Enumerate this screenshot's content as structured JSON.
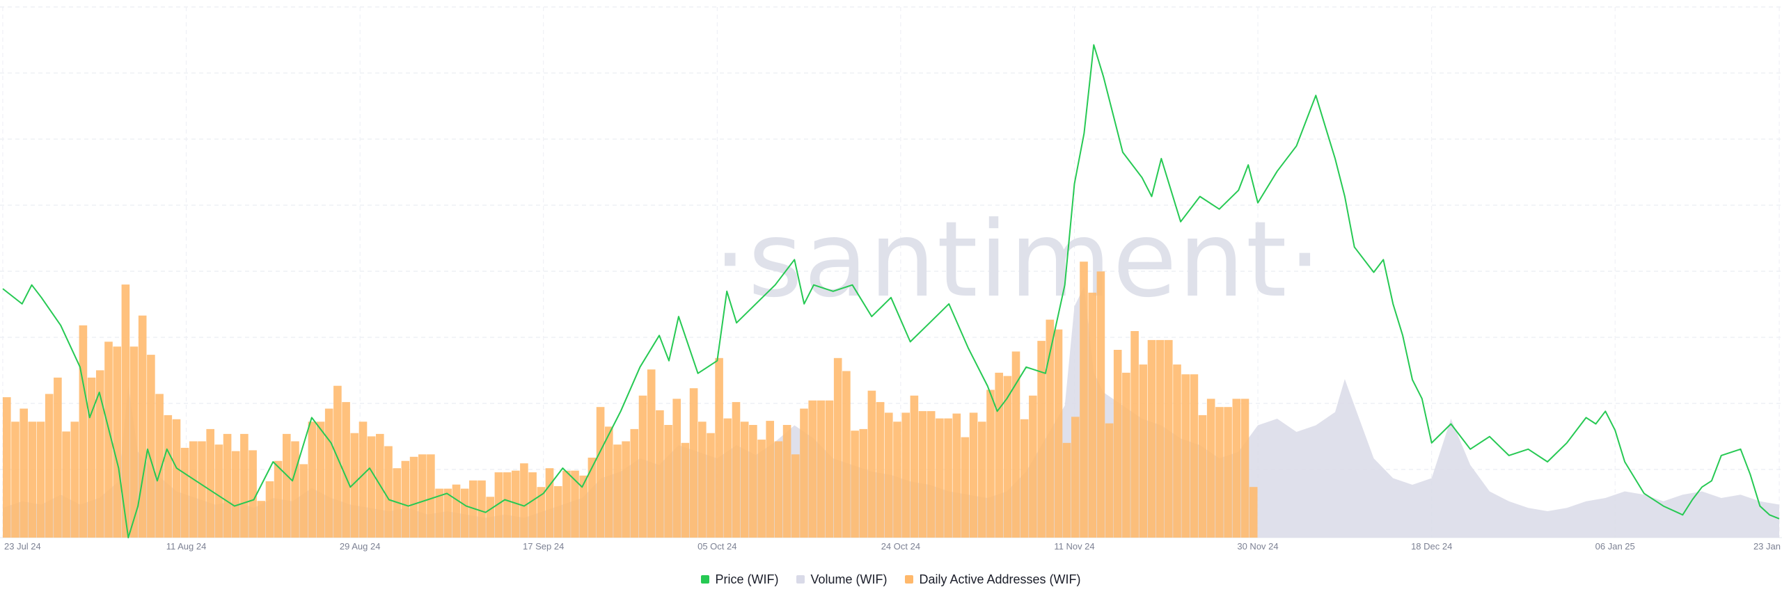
{
  "watermark": "·santiment·",
  "legend": [
    {
      "label": "Price (WIF)",
      "color": "#26c953"
    },
    {
      "label": "Volume (WIF)",
      "color": "#d9dae8"
    },
    {
      "label": "Daily Active Addresses (WIF)",
      "color": "#ffb86b"
    }
  ],
  "chart_data": {
    "type": "line+bar",
    "title": "",
    "x_tick_labels": [
      "23 Jul 24",
      "11 Aug 24",
      "29 Aug 24",
      "17 Sep 24",
      "05 Oct 24",
      "24 Oct 24",
      "11 Nov 24",
      "30 Nov 24",
      "18 Dec 24",
      "06 Jan 25",
      "23 Jan"
    ],
    "x_tick_days": [
      0,
      19,
      37,
      56,
      74,
      93,
      111,
      130,
      148,
      167,
      184
    ],
    "grid": true,
    "series": [
      {
        "name": "Price (WIF)",
        "kind": "line",
        "color": "#26c953",
        "ylim": [
          0.6,
          4.8
        ],
        "points": [
          [
            0,
            2.57
          ],
          [
            2,
            2.45
          ],
          [
            3,
            2.6
          ],
          [
            4,
            2.5
          ],
          [
            6,
            2.28
          ],
          [
            8,
            1.95
          ],
          [
            9,
            1.55
          ],
          [
            10,
            1.75
          ],
          [
            12,
            1.15
          ],
          [
            13,
            0.6
          ],
          [
            14,
            0.85
          ],
          [
            15,
            1.3
          ],
          [
            16,
            1.05
          ],
          [
            17,
            1.3
          ],
          [
            18,
            1.15
          ],
          [
            20,
            1.05
          ],
          [
            22,
            0.95
          ],
          [
            24,
            0.85
          ],
          [
            26,
            0.9
          ],
          [
            28,
            1.2
          ],
          [
            30,
            1.05
          ],
          [
            32,
            1.55
          ],
          [
            34,
            1.35
          ],
          [
            36,
            1.0
          ],
          [
            38,
            1.15
          ],
          [
            40,
            0.9
          ],
          [
            42,
            0.85
          ],
          [
            44,
            0.9
          ],
          [
            46,
            0.95
          ],
          [
            48,
            0.85
          ],
          [
            50,
            0.8
          ],
          [
            52,
            0.9
          ],
          [
            54,
            0.85
          ],
          [
            56,
            0.95
          ],
          [
            58,
            1.15
          ],
          [
            60,
            1.0
          ],
          [
            62,
            1.3
          ],
          [
            64,
            1.6
          ],
          [
            66,
            1.95
          ],
          [
            68,
            2.2
          ],
          [
            69,
            2.0
          ],
          [
            70,
            2.35
          ],
          [
            72,
            1.9
          ],
          [
            74,
            2.0
          ],
          [
            75,
            2.55
          ],
          [
            76,
            2.3
          ],
          [
            78,
            2.45
          ],
          [
            80,
            2.6
          ],
          [
            82,
            2.8
          ],
          [
            83,
            2.45
          ],
          [
            84,
            2.6
          ],
          [
            86,
            2.55
          ],
          [
            88,
            2.6
          ],
          [
            90,
            2.35
          ],
          [
            92,
            2.5
          ],
          [
            94,
            2.15
          ],
          [
            96,
            2.3
          ],
          [
            98,
            2.45
          ],
          [
            100,
            2.1
          ],
          [
            102,
            1.8
          ],
          [
            103,
            1.6
          ],
          [
            104,
            1.7
          ],
          [
            106,
            1.95
          ],
          [
            108,
            1.9
          ],
          [
            110,
            2.6
          ],
          [
            111,
            3.4
          ],
          [
            112,
            3.8
          ],
          [
            113,
            4.5
          ],
          [
            114,
            4.25
          ],
          [
            115,
            3.95
          ],
          [
            116,
            3.65
          ],
          [
            118,
            3.45
          ],
          [
            119,
            3.3
          ],
          [
            120,
            3.6
          ],
          [
            122,
            3.1
          ],
          [
            124,
            3.3
          ],
          [
            126,
            3.2
          ],
          [
            128,
            3.35
          ],
          [
            129,
            3.55
          ],
          [
            130,
            3.25
          ],
          [
            132,
            3.5
          ],
          [
            134,
            3.7
          ],
          [
            135,
            3.9
          ],
          [
            136,
            4.1
          ],
          [
            137,
            3.85
          ],
          [
            138,
            3.6
          ],
          [
            139,
            3.3
          ],
          [
            140,
            2.9
          ],
          [
            142,
            2.7
          ],
          [
            143,
            2.8
          ],
          [
            144,
            2.45
          ],
          [
            145,
            2.2
          ],
          [
            146,
            1.85
          ],
          [
            147,
            1.7
          ],
          [
            148,
            1.35
          ],
          [
            150,
            1.5
          ],
          [
            152,
            1.3
          ],
          [
            154,
            1.4
          ],
          [
            156,
            1.25
          ],
          [
            158,
            1.3
          ],
          [
            160,
            1.2
          ],
          [
            162,
            1.35
          ],
          [
            164,
            1.55
          ],
          [
            165,
            1.5
          ],
          [
            166,
            1.6
          ],
          [
            167,
            1.45
          ],
          [
            168,
            1.2
          ],
          [
            170,
            0.95
          ],
          [
            172,
            0.85
          ],
          [
            174,
            0.78
          ],
          [
            175,
            0.9
          ],
          [
            176,
            1.0
          ],
          [
            177,
            1.05
          ],
          [
            178,
            1.25
          ],
          [
            180,
            1.3
          ],
          [
            181,
            1.1
          ],
          [
            182,
            0.85
          ],
          [
            183,
            0.78
          ],
          [
            184,
            0.75
          ]
        ]
      },
      {
        "name": "Volume (WIF)",
        "kind": "area",
        "color": "#d9dae8",
        "points": [
          [
            0,
            45
          ],
          [
            2,
            55
          ],
          [
            4,
            50
          ],
          [
            6,
            65
          ],
          [
            8,
            50
          ],
          [
            10,
            60
          ],
          [
            12,
            85
          ],
          [
            13,
            230
          ],
          [
            14,
            130
          ],
          [
            16,
            95
          ],
          [
            18,
            70
          ],
          [
            20,
            60
          ],
          [
            22,
            50
          ],
          [
            24,
            55
          ],
          [
            26,
            45
          ],
          [
            28,
            60
          ],
          [
            30,
            55
          ],
          [
            32,
            75
          ],
          [
            34,
            60
          ],
          [
            36,
            50
          ],
          [
            38,
            45
          ],
          [
            40,
            40
          ],
          [
            42,
            45
          ],
          [
            44,
            35
          ],
          [
            46,
            40
          ],
          [
            48,
            35
          ],
          [
            50,
            30
          ],
          [
            52,
            35
          ],
          [
            54,
            30
          ],
          [
            56,
            40
          ],
          [
            58,
            50
          ],
          [
            60,
            60
          ],
          [
            62,
            90
          ],
          [
            64,
            100
          ],
          [
            66,
            120
          ],
          [
            68,
            110
          ],
          [
            70,
            140
          ],
          [
            72,
            130
          ],
          [
            74,
            120
          ],
          [
            76,
            140
          ],
          [
            78,
            125
          ],
          [
            80,
            145
          ],
          [
            82,
            170
          ],
          [
            84,
            150
          ],
          [
            86,
            120
          ],
          [
            88,
            110
          ],
          [
            90,
            100
          ],
          [
            92,
            95
          ],
          [
            94,
            85
          ],
          [
            96,
            80
          ],
          [
            98,
            70
          ],
          [
            100,
            65
          ],
          [
            102,
            60
          ],
          [
            104,
            70
          ],
          [
            106,
            100
          ],
          [
            108,
            150
          ],
          [
            110,
            200
          ],
          [
            111,
            350
          ],
          [
            112,
            380
          ],
          [
            113,
            250
          ],
          [
            114,
            220
          ],
          [
            116,
            200
          ],
          [
            118,
            180
          ],
          [
            120,
            170
          ],
          [
            122,
            150
          ],
          [
            124,
            140
          ],
          [
            126,
            120
          ],
          [
            128,
            130
          ],
          [
            130,
            170
          ],
          [
            132,
            180
          ],
          [
            134,
            160
          ],
          [
            136,
            170
          ],
          [
            138,
            190
          ],
          [
            139,
            240
          ],
          [
            140,
            200
          ],
          [
            142,
            120
          ],
          [
            144,
            90
          ],
          [
            146,
            80
          ],
          [
            148,
            90
          ],
          [
            150,
            180
          ],
          [
            152,
            110
          ],
          [
            154,
            70
          ],
          [
            156,
            55
          ],
          [
            158,
            45
          ],
          [
            160,
            40
          ],
          [
            162,
            45
          ],
          [
            164,
            55
          ],
          [
            166,
            60
          ],
          [
            168,
            70
          ],
          [
            170,
            65
          ],
          [
            172,
            55
          ],
          [
            174,
            65
          ],
          [
            176,
            70
          ],
          [
            178,
            60
          ],
          [
            180,
            65
          ],
          [
            182,
            55
          ],
          [
            184,
            50
          ]
        ]
      },
      {
        "name": "Daily Active Addresses (WIF)",
        "kind": "bar",
        "color": "#ffb86b",
        "ylim": [
          0,
          65000
        ],
        "values": [
          17200,
          14200,
          15800,
          14200,
          14200,
          17600,
          19600,
          13000,
          14200,
          26000,
          19600,
          20500,
          24000,
          23400,
          31000,
          23400,
          27200,
          22400,
          17600,
          15000,
          14500,
          11000,
          11800,
          11800,
          13300,
          11400,
          12700,
          10600,
          12700,
          10700,
          4500,
          6900,
          9400,
          12700,
          11800,
          9000,
          14200,
          14200,
          15800,
          18600,
          16600,
          12800,
          14200,
          12400,
          12700,
          11200,
          8500,
          9400,
          9900,
          10200,
          10200,
          6000,
          6000,
          6500,
          6000,
          7000,
          7000,
          5000,
          8000,
          8000,
          8200,
          9100,
          8000,
          6200,
          8500,
          6300,
          8200,
          8200,
          7600,
          9800,
          16000,
          13600,
          11400,
          11800,
          13300,
          17400,
          20600,
          15600,
          13800,
          17000,
          11600,
          18300,
          14200,
          12800,
          22000,
          14600,
          16600,
          14200,
          13800,
          12000,
          14300,
          11800,
          13800,
          10200,
          15800,
          16800,
          16800,
          16800,
          22000,
          20400,
          13100,
          13300,
          18000,
          16600,
          15300,
          14200,
          15300,
          17400,
          15500,
          15500,
          14600,
          14600,
          15200,
          12300,
          15300,
          14200,
          18100,
          20200,
          19800,
          22800,
          14500,
          17400,
          24100,
          26700,
          25500,
          11600,
          14800,
          33800,
          30000,
          32600,
          14000,
          23000,
          20200,
          25300,
          21200,
          24200,
          24200,
          24200,
          21200,
          20000,
          20000,
          15000,
          17000,
          16000,
          16000,
          17000,
          17000,
          6200
        ]
      }
    ]
  }
}
